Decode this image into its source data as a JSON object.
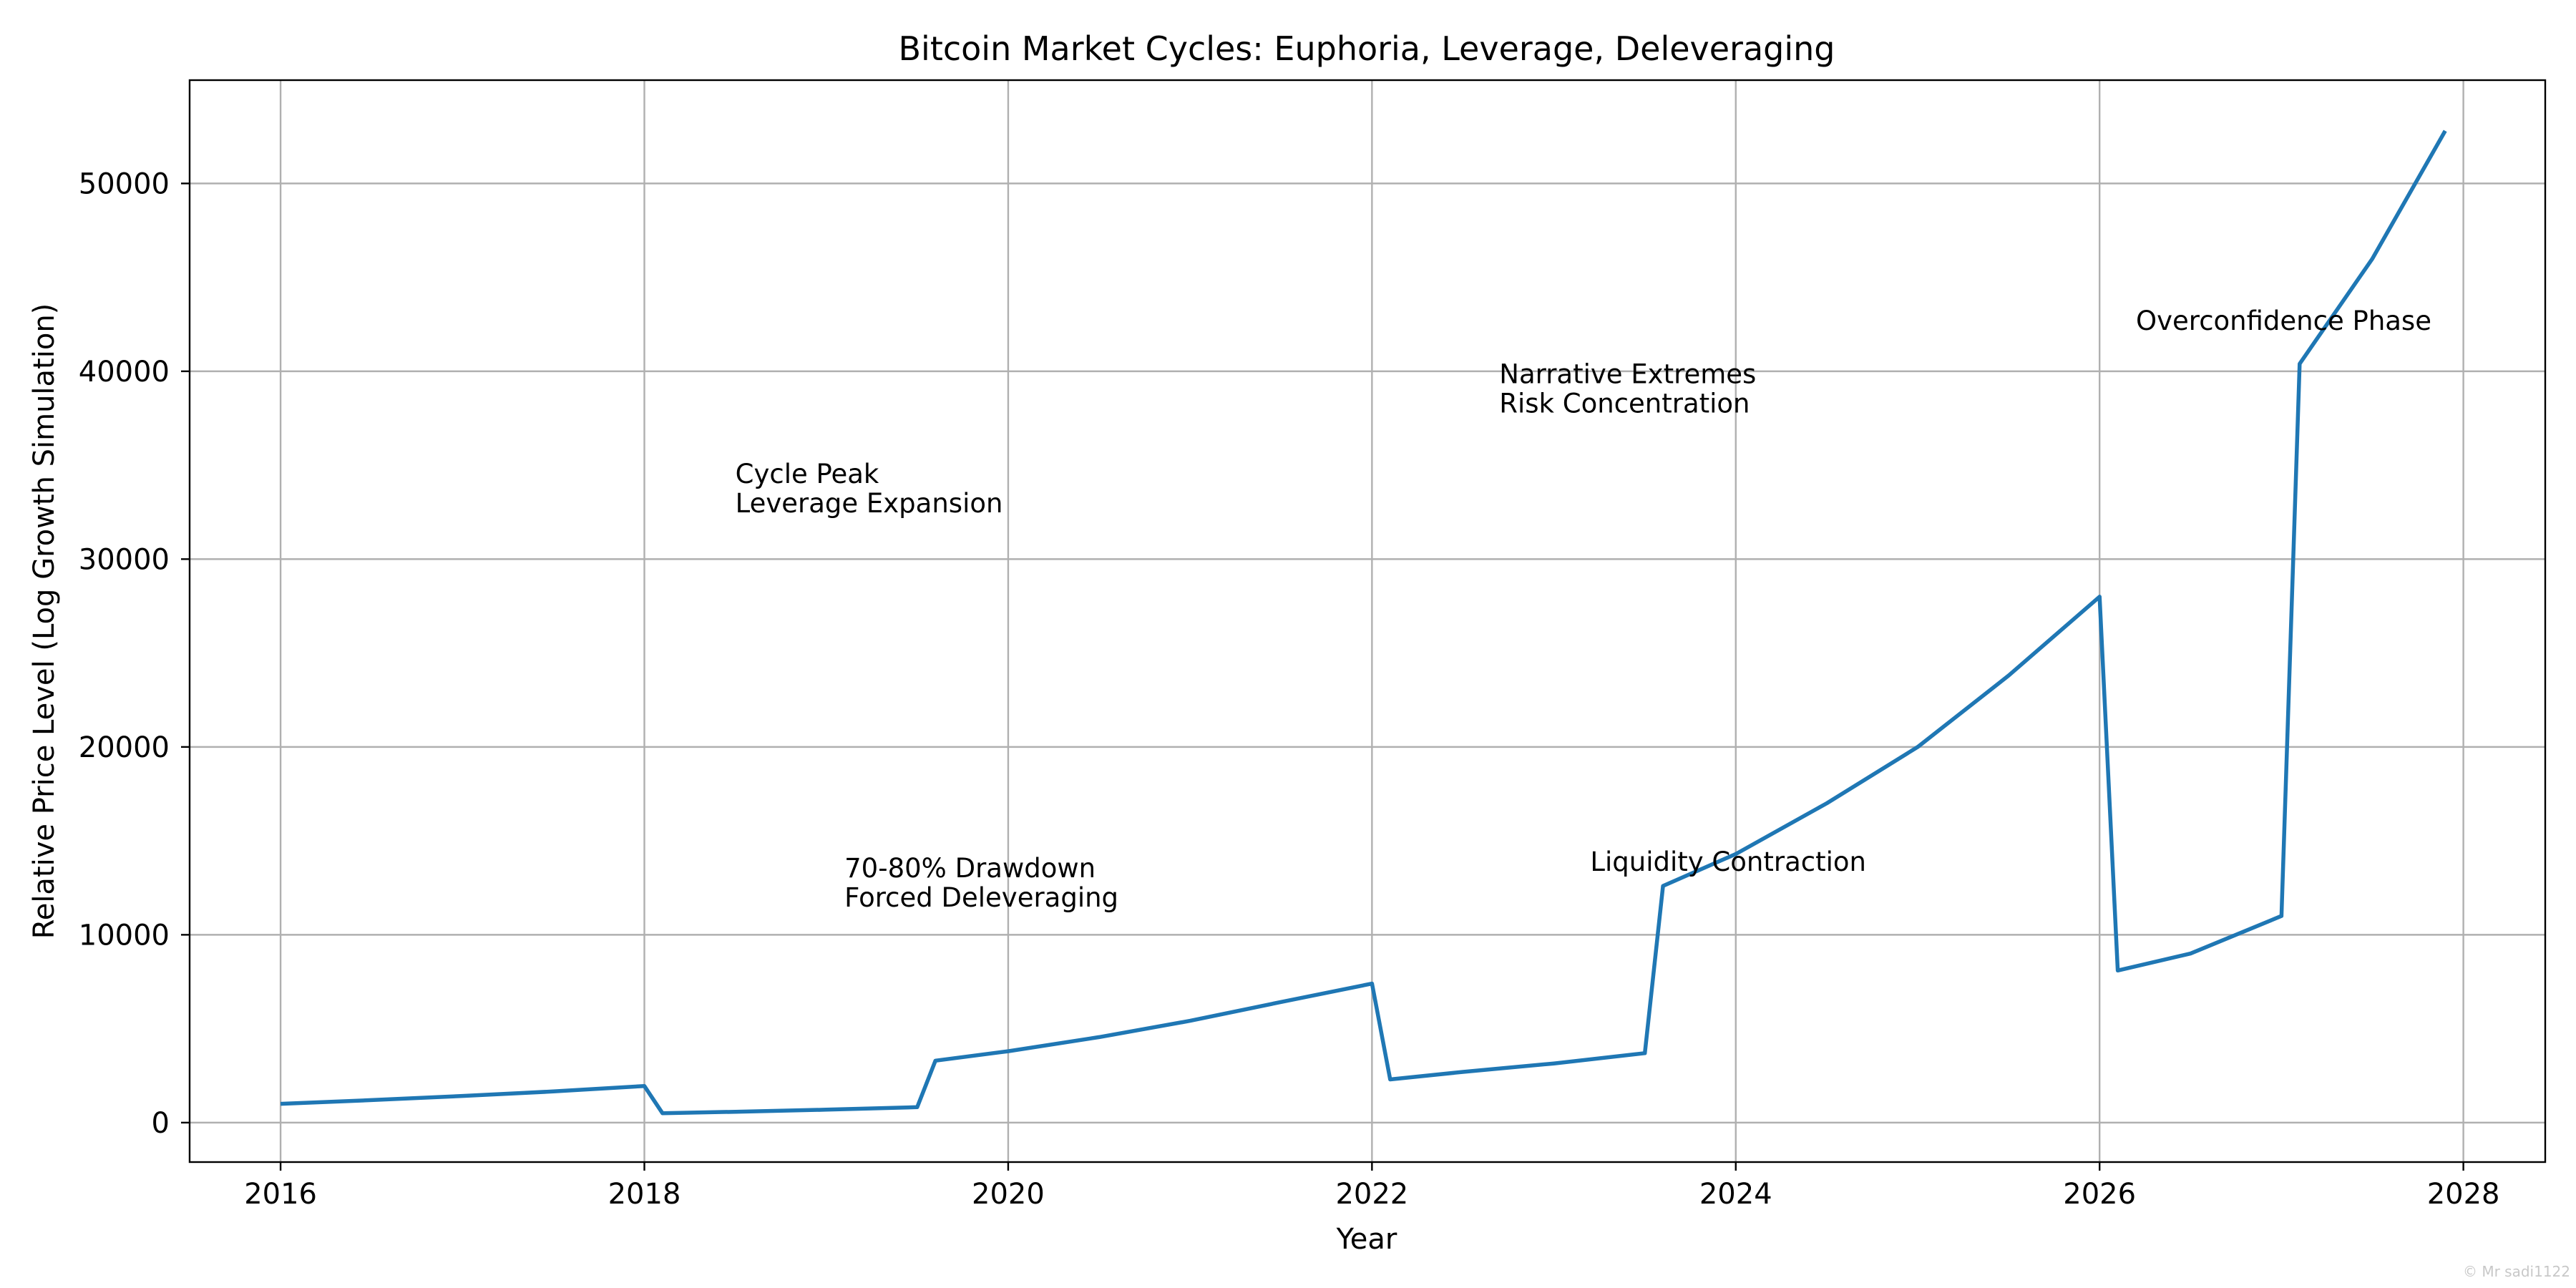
{
  "chart_data": {
    "type": "line",
    "title": "Bitcoin Market Cycles: Euphoria, Leverage, Deleveraging",
    "xlabel": "Year",
    "ylabel": "Relative Price Level (Log Growth Simulation)",
    "xlim": [
      2015.5,
      2028.45
    ],
    "ylim": [
      -2100,
      55500
    ],
    "grid": true,
    "x_ticks": [
      2016,
      2018,
      2020,
      2022,
      2024,
      2026,
      2028
    ],
    "y_ticks": [
      0,
      10000,
      20000,
      30000,
      40000,
      50000
    ],
    "series": [
      {
        "color": "#1f77b4",
        "x": [
          2016.0,
          2016.5,
          2017.0,
          2017.5,
          2018.0,
          2018.1,
          2018.5,
          2019.0,
          2019.5,
          2019.6,
          2020.0,
          2020.5,
          2021.0,
          2021.5,
          2022.0,
          2022.1,
          2022.5,
          2023.0,
          2023.5,
          2023.6,
          2024.0,
          2024.5,
          2025.0,
          2025.5,
          2026.0,
          2026.1,
          2026.5,
          2027.0,
          2027.1,
          2027.5,
          2027.9
        ],
        "y": [
          1000,
          1200,
          1420,
          1660,
          1950,
          500,
          580,
          690,
          820,
          3300,
          3800,
          4550,
          5420,
          6420,
          7400,
          2300,
          2700,
          3150,
          3700,
          12600,
          14300,
          17000,
          20000,
          23800,
          28000,
          8100,
          9000,
          11000,
          40400,
          46000,
          52800
        ]
      }
    ],
    "annotations": [
      {
        "lines": [
          "Cycle Peak",
          "Leverage Expansion"
        ],
        "x": 2018.5,
        "y": 32500
      },
      {
        "lines": [
          "70-80% Drawdown",
          "Forced Deleveraging"
        ],
        "x": 2019.1,
        "y": 11500
      },
      {
        "lines": [
          "Narrative Extremes",
          "Risk Concentration"
        ],
        "x": 2022.7,
        "y": 37800
      },
      {
        "lines": [
          "Liquidity Contraction"
        ],
        "x": 2023.2,
        "y": 13400
      },
      {
        "lines": [
          "Overconfidence Phase"
        ],
        "x": 2026.2,
        "y": 42200
      }
    ]
  },
  "watermark": "© Mr sadi1122"
}
